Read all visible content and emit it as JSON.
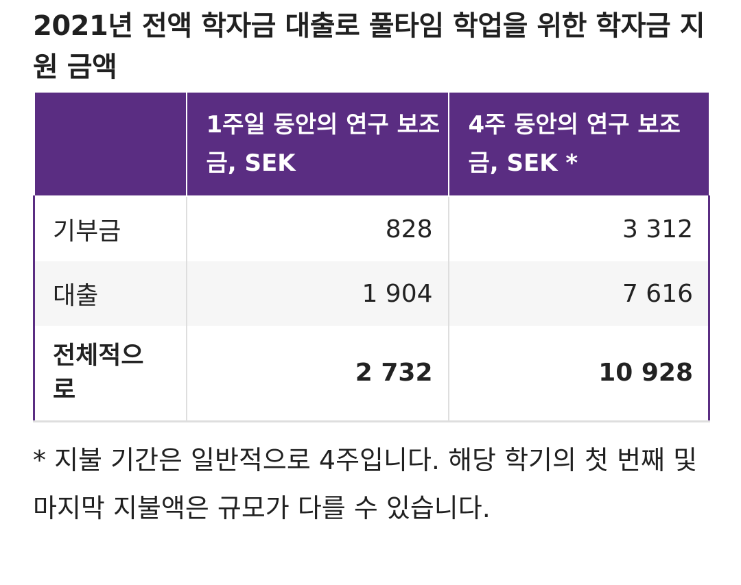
{
  "title": "2021년 전액 학자금 대출로 풀타임 학업을 위한 학자금 지원 금액",
  "table": {
    "headers": [
      "",
      "1주일 동안의 연구 보조금, SEK",
      "4주 동안의 연구 보조금, SEK *"
    ],
    "rows": [
      {
        "label": "기부금",
        "week1": "828",
        "week4": "3 312"
      },
      {
        "label": "대출",
        "week1": "1 904",
        "week4": "7 616"
      },
      {
        "label": "전체적으로",
        "week1": "2 732",
        "week4": "10 928"
      }
    ]
  },
  "footnote": "* 지불 기간은 일반적으로 4주입니다. 해당 학기의 첫 번째 및 마지막 지불액은 규모가 다를 수 있습니다.",
  "colors": {
    "header_background": "#5a2d82",
    "header_text": "#ffffff",
    "row_shade": "#f6f6f6"
  }
}
